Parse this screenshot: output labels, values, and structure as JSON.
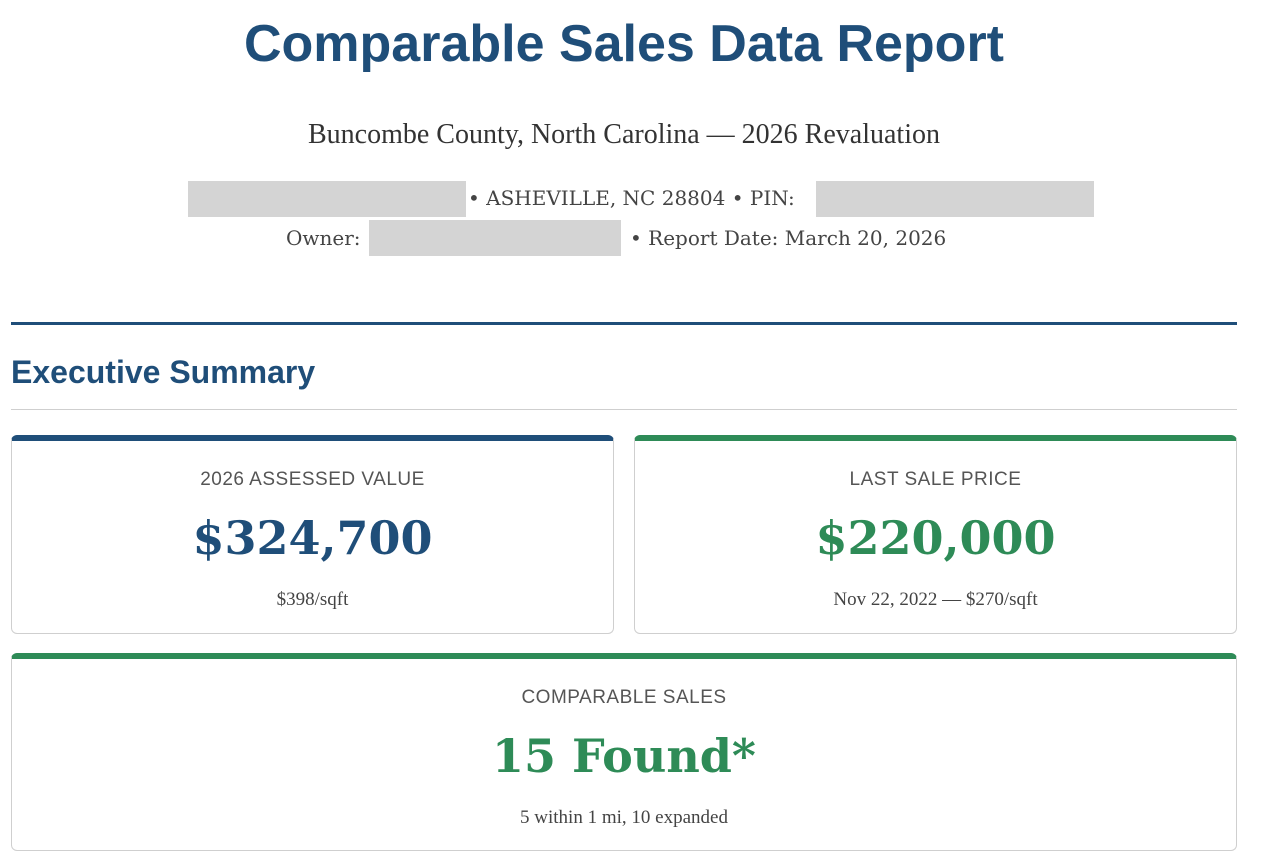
{
  "header": {
    "title": "Comparable Sales Data Report",
    "subtitle": "Buncombe County, North Carolina — 2026 Revaluation",
    "location_line": "• ASHEVILLE, NC 28804 • PIN:",
    "owner_label": "Owner:",
    "report_date_line": "• Report Date: March 20, 2026"
  },
  "summary": {
    "heading": "Executive Summary",
    "cards": [
      {
        "label": "2026 ASSESSED VALUE",
        "value": "$324,700",
        "note": "$398/sqft"
      },
      {
        "label": "LAST SALE PRICE",
        "value": "$220,000",
        "note": "Nov 22, 2022 — $270/sqft"
      },
      {
        "label": "COMPARABLE SALES",
        "value": "15 Found*",
        "note": "5 within 1 mi, 10 expanded"
      }
    ]
  }
}
